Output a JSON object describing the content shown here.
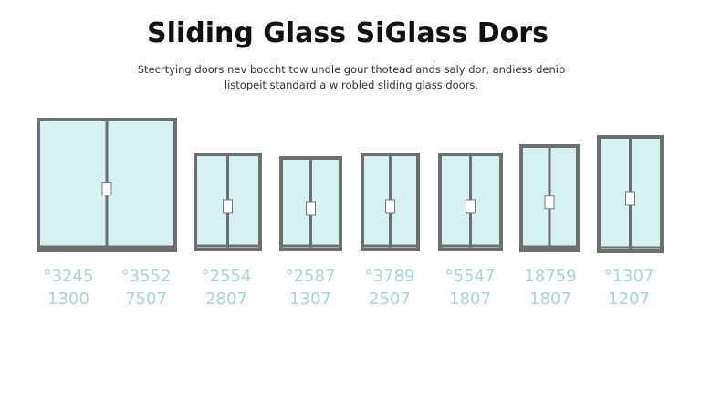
{
  "header": {
    "title": "Sliding Glass SiGlass Dors",
    "subtitle": [
      "Stecrtying doors nev boccht tow undle gour thotead ands saly dor, andiess denip",
      "listopeit standard a w robled sliding glass doors."
    ]
  },
  "items": [
    {
      "top": "°3245",
      "bottom": "1300"
    },
    {
      "top": "°3552",
      "bottom": "7507"
    },
    {
      "top": "°2554",
      "bottom": "2807"
    },
    {
      "top": "°2587",
      "bottom": "1307"
    },
    {
      "top": "°3789",
      "bottom": "2507"
    },
    {
      "top": "°5547",
      "bottom": "1807"
    },
    {
      "top": "18759",
      "bottom": "1807"
    },
    {
      "top": "°1307",
      "bottom": "1207"
    }
  ]
}
